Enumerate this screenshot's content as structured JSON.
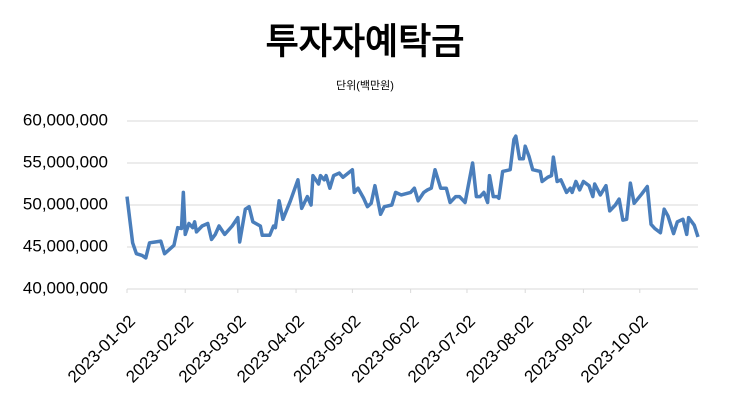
{
  "chart_data": {
    "type": "line",
    "title": "투자자예탁금",
    "subtitle": "단위(백만원)",
    "x": [
      "2023-01-02",
      "2023-01-05",
      "2023-01-07",
      "2023-01-10",
      "2023-01-12",
      "2023-01-14",
      "2023-01-17",
      "2023-01-20",
      "2023-01-22",
      "2023-01-25",
      "2023-01-27",
      "2023-01-29",
      "2023-01-31",
      "2023-02-01",
      "2023-02-02",
      "2023-02-04",
      "2023-02-06",
      "2023-02-07",
      "2023-02-08",
      "2023-02-11",
      "2023-02-14",
      "2023-02-16",
      "2023-02-18",
      "2023-02-20",
      "2023-02-23",
      "2023-02-27",
      "2023-03-02",
      "2023-03-03",
      "2023-03-06",
      "2023-03-08",
      "2023-03-10",
      "2023-03-14",
      "2023-03-15",
      "2023-03-19",
      "2023-03-21",
      "2023-03-22",
      "2023-03-24",
      "2023-03-26",
      "2023-03-30",
      "2023-04-03",
      "2023-04-05",
      "2023-04-08",
      "2023-04-10",
      "2023-04-11",
      "2023-04-14",
      "2023-04-15",
      "2023-04-17",
      "2023-04-18",
      "2023-04-20",
      "2023-04-22",
      "2023-04-25",
      "2023-04-27",
      "2023-05-02",
      "2023-05-03",
      "2023-05-05",
      "2023-05-08",
      "2023-05-10",
      "2023-05-12",
      "2023-05-14",
      "2023-05-17",
      "2023-05-19",
      "2023-05-23",
      "2023-05-25",
      "2023-05-28",
      "2023-06-02",
      "2023-06-04",
      "2023-06-06",
      "2023-06-09",
      "2023-06-11",
      "2023-06-13",
      "2023-06-15",
      "2023-06-18",
      "2023-06-21",
      "2023-06-23",
      "2023-06-26",
      "2023-06-28",
      "2023-07-01",
      "2023-07-05",
      "2023-07-07",
      "2023-07-09",
      "2023-07-11",
      "2023-07-13",
      "2023-07-14",
      "2023-07-16",
      "2023-07-18",
      "2023-07-19",
      "2023-07-21",
      "2023-07-25",
      "2023-07-27",
      "2023-07-28",
      "2023-07-30",
      "2023-08-01",
      "2023-08-02",
      "2023-08-04",
      "2023-08-06",
      "2023-08-10",
      "2023-08-11",
      "2023-08-14",
      "2023-08-16",
      "2023-08-17",
      "2023-08-19",
      "2023-08-21",
      "2023-08-24",
      "2023-08-26",
      "2023-08-27",
      "2023-08-29",
      "2023-08-31",
      "2023-09-02",
      "2023-09-05",
      "2023-09-07",
      "2023-09-08",
      "2023-09-11",
      "2023-09-14",
      "2023-09-16",
      "2023-09-19",
      "2023-09-21",
      "2023-09-23",
      "2023-09-25",
      "2023-09-27",
      "2023-09-29",
      "2023-10-03",
      "2023-10-06",
      "2023-10-08",
      "2023-10-10",
      "2023-10-13",
      "2023-10-15",
      "2023-10-17",
      "2023-10-20",
      "2023-10-22",
      "2023-10-25",
      "2023-10-27",
      "2023-10-28",
      "2023-10-31",
      "2023-11-02"
    ],
    "series": [
      {
        "name": "투자자예탁금",
        "color": "#4a7ebb",
        "values": [
          51000000,
          45500000,
          44200000,
          44000000,
          43700000,
          45500000,
          45600000,
          45700000,
          44200000,
          44800000,
          45200000,
          47300000,
          47200000,
          51500000,
          46500000,
          47800000,
          47300000,
          48000000,
          46800000,
          47500000,
          47800000,
          45900000,
          46500000,
          47500000,
          46500000,
          47500000,
          48500000,
          45600000,
          49500000,
          49800000,
          48000000,
          47500000,
          46400000,
          46400000,
          47500000,
          47300000,
          50500000,
          48300000,
          50500000,
          53000000,
          49600000,
          51000000,
          50000000,
          53500000,
          52500000,
          53500000,
          53000000,
          53500000,
          52000000,
          53500000,
          53800000,
          53300000,
          54200000,
          51500000,
          52000000,
          50800000,
          49800000,
          50200000,
          52300000,
          48900000,
          49800000,
          50000000,
          51500000,
          51200000,
          51500000,
          52000000,
          50500000,
          51500000,
          51800000,
          52000000,
          54200000,
          52000000,
          52000000,
          50300000,
          51000000,
          51000000,
          50300000,
          55000000,
          51000000,
          51000000,
          51500000,
          50300000,
          53500000,
          51000000,
          51000000,
          50800000,
          54000000,
          54200000,
          57800000,
          58200000,
          55500000,
          55500000,
          57000000,
          55800000,
          54200000,
          54000000,
          52800000,
          53300000,
          53500000,
          55700000,
          52800000,
          53000000,
          51500000,
          52000000,
          51500000,
          52800000,
          51800000,
          52800000,
          52300000,
          51000000,
          52500000,
          51200000,
          52300000,
          49300000,
          50000000,
          50700000,
          48200000,
          48300000,
          52600000,
          50200000,
          51300000,
          52200000,
          47700000,
          47200000,
          46700000,
          49500000,
          48700000,
          46600000,
          48000000,
          48300000,
          46500000,
          48500000,
          47600000,
          46200000
        ]
      }
    ],
    "xlim": [
      "2023-01-02",
      "2023-11-02"
    ],
    "xticks": [
      "2023-01-02",
      "2023-02-02",
      "2023-03-02",
      "2023-04-02",
      "2023-05-02",
      "2023-06-02",
      "2023-07-02",
      "2023-08-02",
      "2023-09-02",
      "2023-10-02"
    ],
    "ylim": [
      40000000,
      60000000
    ],
    "yticks": [
      {
        "value": 40000000,
        "label": "40,000,000"
      },
      {
        "value": 45000000,
        "label": "45,000,000"
      },
      {
        "value": 50000000,
        "label": "50,000,000"
      },
      {
        "value": 55000000,
        "label": "55,000,000"
      },
      {
        "value": 60000000,
        "label": "60,000,000"
      }
    ],
    "grid": true
  }
}
